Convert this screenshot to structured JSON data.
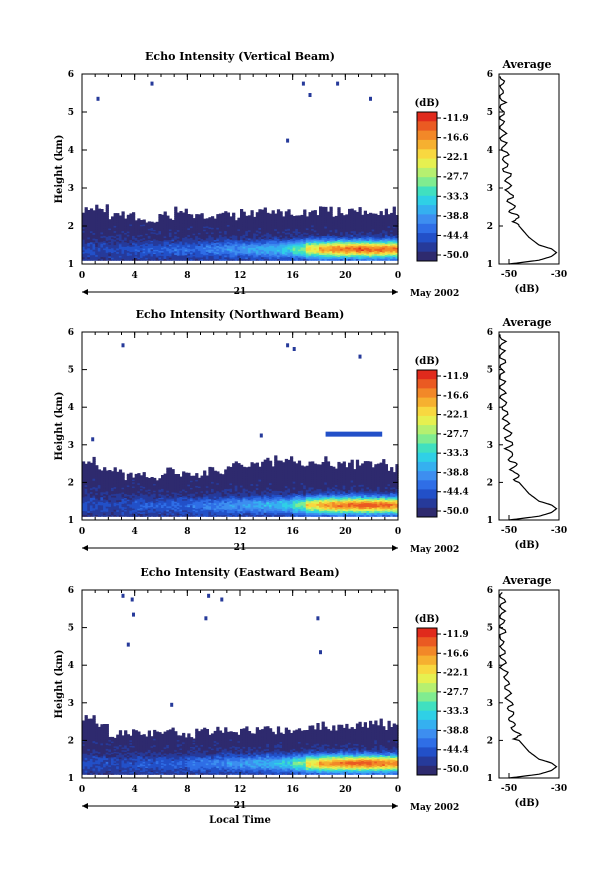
{
  "scale": {
    "unit": "(dB)",
    "labels": [
      "-11.9",
      "-16.6",
      "-22.1",
      "-27.7",
      "-33.3",
      "-38.8",
      "-44.4",
      "-50.0"
    ],
    "colors": [
      "#2e2a6e",
      "#263a9a",
      "#2250c8",
      "#2f6ee6",
      "#3d8ef0",
      "#35b0f0",
      "#2fd0e6",
      "#40e0c0",
      "#80ec90",
      "#b6f070",
      "#e6f050",
      "#f8d840",
      "#f6b030",
      "#f28828",
      "#ea5a22",
      "#e02a1c"
    ]
  },
  "xaxis": {
    "ticks": [
      "0",
      "4",
      "8",
      "12",
      "16",
      "20",
      "0"
    ],
    "date_day": "21",
    "date_month": "May 2002",
    "xlabel": "Local Time"
  },
  "yaxis": {
    "label": "Height (km)",
    "ticks": [
      "1",
      "2",
      "3",
      "4",
      "5",
      "6"
    ]
  },
  "avg": {
    "title": "Average",
    "xlabel": "(dB)",
    "xticks": [
      "-50",
      "-30"
    ]
  },
  "chart_data": [
    {
      "type": "heatmap",
      "title": "Echo Intensity (Vertical Beam)",
      "xlabel": "",
      "ylabel": "Height (km)",
      "xlim": [
        0,
        24
      ],
      "ylim": [
        1,
        6
      ],
      "base_top_km": [
        2.4,
        2.5,
        2.3,
        2.3,
        2.2,
        2.2,
        2.3,
        2.4,
        2.3,
        2.3,
        2.3,
        2.3,
        2.4,
        2.4,
        2.4,
        2.4,
        2.4,
        2.4,
        2.5,
        2.4,
        2.4,
        2.4,
        2.4,
        2.4
      ],
      "peak_db": [
        -46,
        -47,
        -47,
        -46,
        -45,
        -45,
        -44,
        -43,
        -44,
        -42,
        -41,
        -40,
        -39,
        -38,
        -37,
        -35,
        -30,
        -22,
        -18,
        -16,
        -15,
        -14,
        -15,
        -16
      ],
      "sparse_echoes": [
        [
          5.2,
          5.8
        ],
        [
          1.1,
          5.4
        ],
        [
          16.7,
          5.8
        ],
        [
          17.2,
          5.5
        ],
        [
          19.3,
          5.8
        ],
        [
          21.8,
          5.4
        ],
        [
          15.5,
          4.3
        ]
      ],
      "average_profile": [
        [
          1.0,
          -50
        ],
        [
          1.1,
          -38
        ],
        [
          1.2,
          -33
        ],
        [
          1.3,
          -31
        ],
        [
          1.4,
          -33
        ],
        [
          1.5,
          -38
        ],
        [
          1.7,
          -42
        ],
        [
          2.0,
          -46
        ],
        [
          2.3,
          -48
        ],
        [
          2.6,
          -49
        ],
        [
          3.0,
          -50
        ],
        [
          3.5,
          -51
        ],
        [
          4.0,
          -52
        ],
        [
          4.5,
          -53
        ],
        [
          5.0,
          -53
        ],
        [
          5.5,
          -53
        ],
        [
          6.0,
          -53
        ]
      ]
    },
    {
      "type": "heatmap",
      "title": "Echo Intensity (Northward Beam)",
      "xlabel": "",
      "ylabel": "Height (km)",
      "xlim": [
        0,
        24
      ],
      "ylim": [
        1,
        6
      ],
      "base_top_km": [
        2.6,
        2.4,
        2.3,
        2.2,
        2.2,
        2.2,
        2.3,
        2.2,
        2.2,
        2.3,
        2.3,
        2.5,
        2.5,
        2.5,
        2.6,
        2.6,
        2.5,
        2.5,
        2.6,
        2.5,
        2.5,
        2.5,
        2.5,
        2.4
      ],
      "peak_db": [
        -46,
        -46,
        -47,
        -46,
        -45,
        -45,
        -44,
        -44,
        -43,
        -42,
        -41,
        -40,
        -39,
        -38,
        -37,
        -35,
        -30,
        -22,
        -18,
        -16,
        -15,
        -14,
        -15,
        -16
      ],
      "sparse_echoes": [
        [
          3.0,
          5.7
        ],
        [
          15.5,
          5.7
        ],
        [
          16.0,
          5.6
        ],
        [
          21.0,
          5.4
        ],
        [
          0.7,
          3.2
        ],
        [
          13.5,
          3.3
        ]
      ],
      "layer_segment": [
        18.5,
        22.8,
        3.3
      ],
      "average_profile": [
        [
          1.0,
          -50
        ],
        [
          1.1,
          -38
        ],
        [
          1.2,
          -33
        ],
        [
          1.3,
          -31
        ],
        [
          1.4,
          -33
        ],
        [
          1.5,
          -38
        ],
        [
          1.7,
          -42
        ],
        [
          2.0,
          -46
        ],
        [
          2.3,
          -48
        ],
        [
          2.6,
          -49
        ],
        [
          3.0,
          -50
        ],
        [
          3.5,
          -51
        ],
        [
          4.0,
          -52
        ],
        [
          4.5,
          -53
        ],
        [
          5.0,
          -53
        ],
        [
          5.5,
          -53
        ],
        [
          6.0,
          -53
        ]
      ]
    },
    {
      "type": "heatmap",
      "title": "Echo Intensity (Eastward Beam)",
      "xlabel": "Local Time",
      "ylabel": "Height (km)",
      "xlim": [
        0,
        24
      ],
      "ylim": [
        1,
        6
      ],
      "base_top_km": [
        2.6,
        2.4,
        2.2,
        2.2,
        2.2,
        2.2,
        2.3,
        2.2,
        2.2,
        2.3,
        2.3,
        2.3,
        2.3,
        2.3,
        2.3,
        2.3,
        2.3,
        2.4,
        2.4,
        2.4,
        2.4,
        2.4,
        2.5,
        2.4
      ],
      "peak_db": [
        -46,
        -46,
        -47,
        -46,
        -45,
        -45,
        -44,
        -44,
        -43,
        -42,
        -41,
        -40,
        -39,
        -38,
        -37,
        -35,
        -30,
        -22,
        -18,
        -16,
        -15,
        -14,
        -15,
        -16
      ],
      "sparse_echoes": [
        [
          3.0,
          5.9
        ],
        [
          3.7,
          5.8
        ],
        [
          3.8,
          5.4
        ],
        [
          3.4,
          4.6
        ],
        [
          9.5,
          5.9
        ],
        [
          10.5,
          5.8
        ],
        [
          9.3,
          5.3
        ],
        [
          17.8,
          5.3
        ],
        [
          18.0,
          4.4
        ],
        [
          6.7,
          3.0
        ]
      ],
      "average_profile": [
        [
          1.0,
          -50
        ],
        [
          1.1,
          -38
        ],
        [
          1.2,
          -33
        ],
        [
          1.3,
          -31
        ],
        [
          1.4,
          -33
        ],
        [
          1.5,
          -38
        ],
        [
          1.7,
          -42
        ],
        [
          2.0,
          -46
        ],
        [
          2.3,
          -48
        ],
        [
          2.6,
          -49
        ],
        [
          3.0,
          -50
        ],
        [
          3.5,
          -51
        ],
        [
          4.0,
          -52
        ],
        [
          4.5,
          -53
        ],
        [
          5.0,
          -53
        ],
        [
          5.5,
          -53
        ],
        [
          6.0,
          -53
        ]
      ]
    }
  ]
}
